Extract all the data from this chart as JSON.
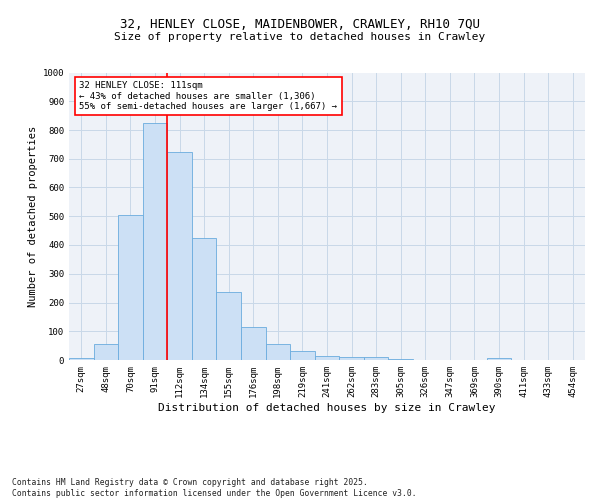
{
  "title_line1": "32, HENLEY CLOSE, MAIDENBOWER, CRAWLEY, RH10 7QU",
  "title_line2": "Size of property relative to detached houses in Crawley",
  "xlabel": "Distribution of detached houses by size in Crawley",
  "ylabel": "Number of detached properties",
  "footer": "Contains HM Land Registry data © Crown copyright and database right 2025.\nContains public sector information licensed under the Open Government Licence v3.0.",
  "bin_labels": [
    "27sqm",
    "48sqm",
    "70sqm",
    "91sqm",
    "112sqm",
    "134sqm",
    "155sqm",
    "176sqm",
    "198sqm",
    "219sqm",
    "241sqm",
    "262sqm",
    "283sqm",
    "305sqm",
    "326sqm",
    "347sqm",
    "369sqm",
    "390sqm",
    "411sqm",
    "433sqm",
    "454sqm"
  ],
  "bar_values": [
    8,
    57,
    505,
    825,
    723,
    425,
    238,
    115,
    55,
    30,
    13,
    10,
    12,
    5,
    0,
    0,
    0,
    7,
    0,
    0,
    0
  ],
  "bar_color": "#cce0f5",
  "bar_edge_color": "#6aacde",
  "vline_index": 3.5,
  "annotation_text": "32 HENLEY CLOSE: 111sqm\n← 43% of detached houses are smaller (1,306)\n55% of semi-detached houses are larger (1,667) →",
  "annotation_box_color": "white",
  "annotation_box_edge": "red",
  "vline_color": "red",
  "ylim": [
    0,
    1000
  ],
  "yticks": [
    0,
    100,
    200,
    300,
    400,
    500,
    600,
    700,
    800,
    900,
    1000
  ],
  "grid_color": "#c8d8e8",
  "bg_color": "#eef2f8",
  "title_fontsize": 9,
  "subtitle_fontsize": 8,
  "axis_label_fontsize": 8,
  "tick_fontsize": 6.5,
  "annotation_fontsize": 6.5,
  "ylabel_fontsize": 7.5
}
